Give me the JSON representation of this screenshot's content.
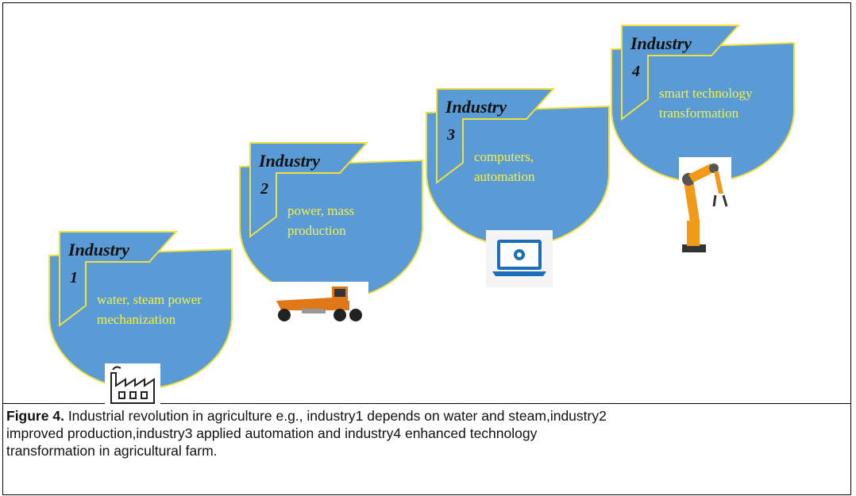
{
  "figure": {
    "stages": [
      {
        "title": "Industry",
        "number": "1",
        "description": [
          "water, steam power",
          "mechanization"
        ]
      },
      {
        "title": "Industry",
        "number": "2",
        "description": [
          "power, mass",
          "production"
        ]
      },
      {
        "title": "Industry",
        "number": "3",
        "description": [
          "computers,",
          "automation"
        ]
      },
      {
        "title": "Industry",
        "number": "4",
        "description": [
          "smart technology",
          "transformation"
        ]
      }
    ],
    "caption": {
      "label": "Figure 4.",
      "lines": [
        "Industrial revolution in agriculture e.g., industry1 depends on water and steam,industry2",
        "improved production,industry3 applied automation and industry4 enhanced technology",
        "transformation in agricultural farm."
      ]
    }
  }
}
